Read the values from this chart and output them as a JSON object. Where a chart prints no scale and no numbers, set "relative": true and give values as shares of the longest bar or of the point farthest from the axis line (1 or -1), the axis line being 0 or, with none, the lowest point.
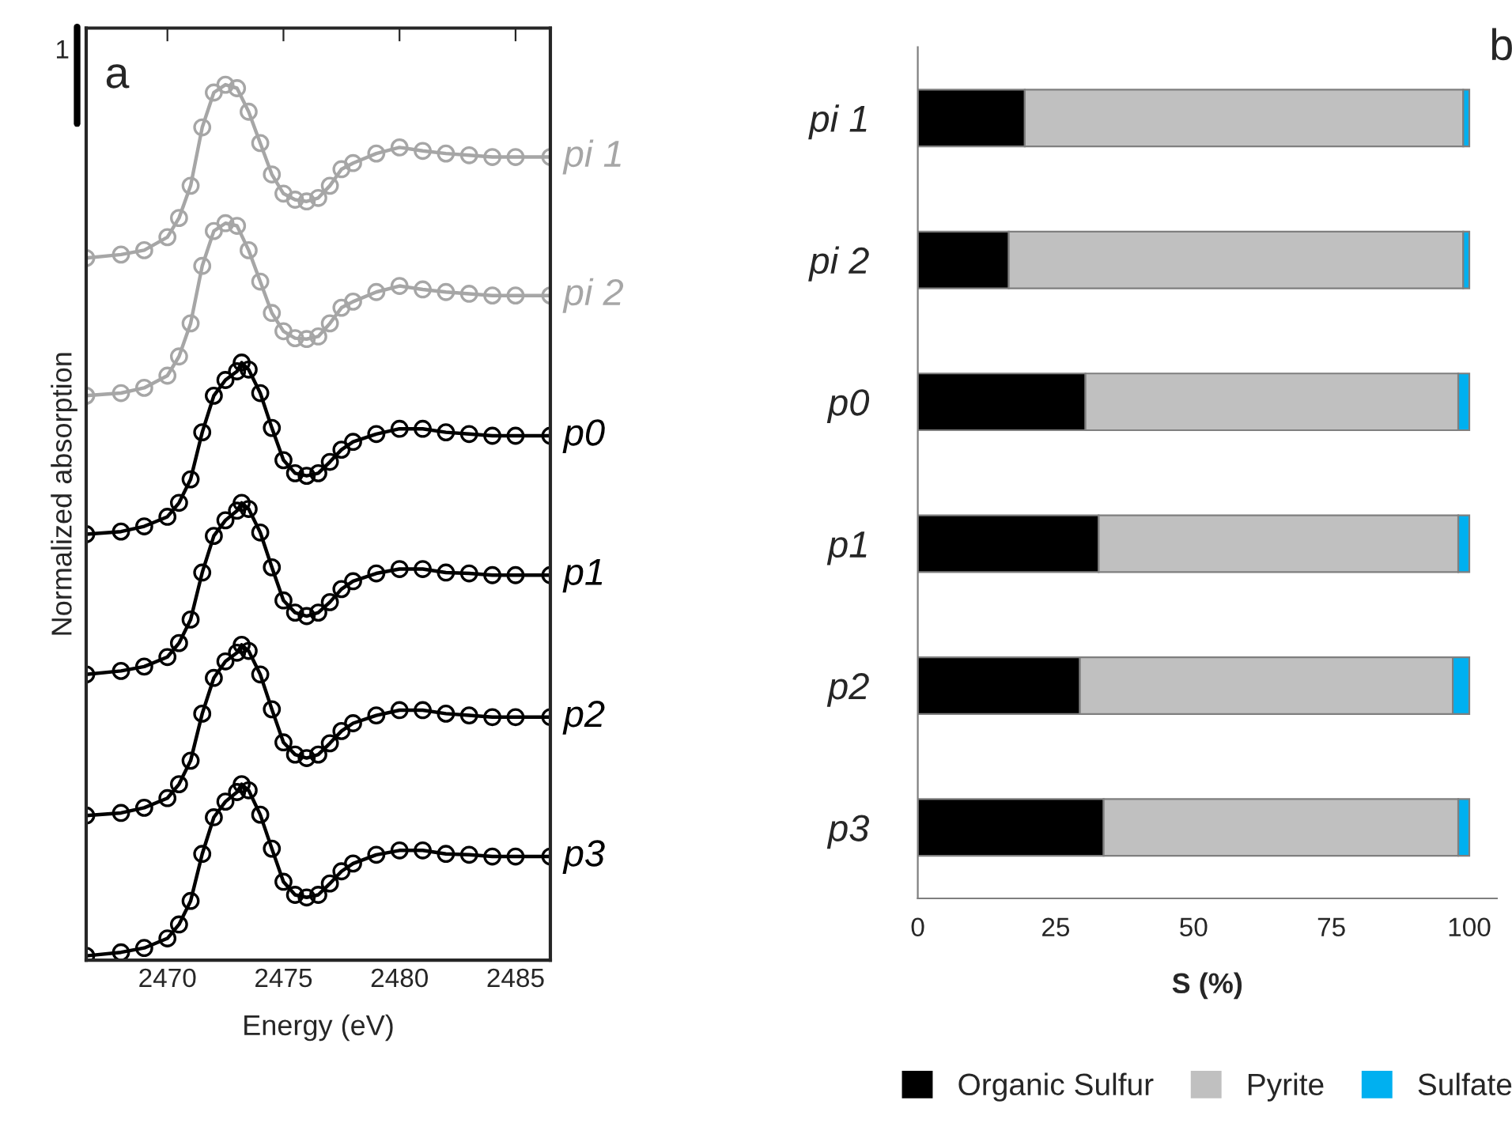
{
  "chart_data": [
    {
      "type": "line",
      "relative": true,
      "xlabel": "Energy (eV)",
      "ylabel": "Normalized absorption",
      "xlim": [
        2466.5,
        2486.5
      ],
      "xticks": [
        2470,
        2475,
        2480,
        2485
      ],
      "tick_labels": "x",
      "marker": "circle",
      "line_style": "solid",
      "annotations": [
        "a",
        "1"
      ],
      "series": [
        {
          "name": "pi 1",
          "color": "#a6a6a6",
          "x": [
            2466.5,
            2468,
            2469,
            2470,
            2470.5,
            2471,
            2471.5,
            2472,
            2472.5,
            2473,
            2473.5,
            2474,
            2474.5,
            2475,
            2475.5,
            2476,
            2476.5,
            2477,
            2477.5,
            2478,
            2479,
            2480,
            2481,
            2482,
            2483,
            2484,
            2485,
            2486.5
          ],
          "values": [
            0.801,
            0.805,
            0.81,
            0.825,
            0.847,
            0.884,
            0.951,
            0.991,
            1.0,
            0.996,
            0.969,
            0.933,
            0.897,
            0.875,
            0.868,
            0.866,
            0.87,
            0.884,
            0.903,
            0.91,
            0.921,
            0.928,
            0.924,
            0.921,
            0.919,
            0.917,
            0.917,
            0.917
          ]
        },
        {
          "name": "pi 2",
          "color": "#a6a6a6",
          "x": [
            2466.5,
            2468,
            2469,
            2470,
            2470.5,
            2471,
            2471.5,
            2472,
            2472.5,
            2473,
            2473.5,
            2474,
            2474.5,
            2475,
            2475.5,
            2476,
            2476.5,
            2477,
            2477.5,
            2478,
            2479,
            2480,
            2481,
            2482,
            2483,
            2484,
            2485,
            2486.5
          ],
          "values": [
            0.643,
            0.646,
            0.652,
            0.666,
            0.688,
            0.726,
            0.792,
            0.832,
            0.841,
            0.838,
            0.81,
            0.774,
            0.738,
            0.717,
            0.709,
            0.708,
            0.711,
            0.726,
            0.744,
            0.751,
            0.762,
            0.769,
            0.765,
            0.762,
            0.76,
            0.758,
            0.758,
            0.758
          ]
        },
        {
          "name": "p0",
          "color": "#000000",
          "x": [
            2466.5,
            2468,
            2469,
            2470,
            2470.5,
            2471,
            2471.5,
            2472,
            2472.5,
            2473,
            2473.2,
            2473.5,
            2474,
            2474.5,
            2475,
            2475.5,
            2476,
            2476.5,
            2477,
            2477.5,
            2478,
            2479,
            2480,
            2481,
            2482,
            2483,
            2484,
            2485,
            2486.5
          ],
          "values": [
            0.484,
            0.487,
            0.493,
            0.504,
            0.52,
            0.547,
            0.601,
            0.643,
            0.661,
            0.671,
            0.681,
            0.673,
            0.646,
            0.606,
            0.569,
            0.554,
            0.551,
            0.554,
            0.567,
            0.581,
            0.59,
            0.599,
            0.605,
            0.605,
            0.601,
            0.599,
            0.597,
            0.597,
            0.597
          ]
        },
        {
          "name": "p1",
          "color": "#000000",
          "x": [
            2466.5,
            2468,
            2469,
            2470,
            2470.5,
            2471,
            2471.5,
            2472,
            2472.5,
            2473,
            2473.2,
            2473.5,
            2474,
            2474.5,
            2475,
            2475.5,
            2476,
            2476.5,
            2477,
            2477.5,
            2478,
            2479,
            2480,
            2481,
            2482,
            2483,
            2484,
            2485,
            2486.5
          ],
          "values": [
            0.323,
            0.327,
            0.332,
            0.343,
            0.359,
            0.386,
            0.44,
            0.482,
            0.5,
            0.511,
            0.52,
            0.513,
            0.486,
            0.446,
            0.408,
            0.394,
            0.39,
            0.394,
            0.406,
            0.421,
            0.43,
            0.439,
            0.444,
            0.444,
            0.44,
            0.439,
            0.437,
            0.437,
            0.437
          ]
        },
        {
          "name": "p2",
          "color": "#000000",
          "x": [
            2466.5,
            2468,
            2469,
            2470,
            2470.5,
            2471,
            2471.5,
            2472,
            2472.5,
            2473,
            2473.2,
            2473.5,
            2474,
            2474.5,
            2475,
            2475.5,
            2476,
            2476.5,
            2477,
            2477.5,
            2478,
            2479,
            2480,
            2481,
            2482,
            2483,
            2484,
            2485,
            2486.5
          ],
          "values": [
            0.161,
            0.164,
            0.17,
            0.181,
            0.197,
            0.224,
            0.278,
            0.319,
            0.338,
            0.348,
            0.357,
            0.35,
            0.323,
            0.283,
            0.245,
            0.231,
            0.227,
            0.231,
            0.244,
            0.258,
            0.267,
            0.276,
            0.282,
            0.282,
            0.278,
            0.276,
            0.274,
            0.274,
            0.274
          ]
        },
        {
          "name": "p3",
          "color": "#000000",
          "x": [
            2466.5,
            2468,
            2469,
            2470,
            2470.5,
            2471,
            2471.5,
            2472,
            2472.5,
            2473,
            2473.2,
            2473.5,
            2474,
            2474.5,
            2475,
            2475.5,
            2476,
            2476.5,
            2477,
            2477.5,
            2478,
            2479,
            2480,
            2481,
            2482,
            2483,
            2484,
            2485,
            2486.5
          ],
          "values": [
            0.0,
            0.004,
            0.009,
            0.02,
            0.036,
            0.063,
            0.117,
            0.159,
            0.177,
            0.188,
            0.197,
            0.19,
            0.162,
            0.123,
            0.085,
            0.07,
            0.067,
            0.07,
            0.083,
            0.097,
            0.106,
            0.116,
            0.121,
            0.121,
            0.117,
            0.116,
            0.114,
            0.114,
            0.114
          ]
        }
      ]
    },
    {
      "type": "bar",
      "orientation": "horizontal",
      "stacked": true,
      "xlabel": "S (%)",
      "xlim": [
        0,
        105
      ],
      "xticks": [
        0,
        25,
        50,
        75,
        100
      ],
      "legend": "bottom",
      "grid": false,
      "annotations": [
        "b"
      ],
      "categories": [
        "pi 1",
        "pi 2",
        "p0",
        "p1",
        "p2",
        "p3"
      ],
      "series": [
        {
          "name": "Organic Sulfur",
          "color": "#000000",
          "values": [
            19.4,
            16.5,
            30.4,
            32.8,
            29.4,
            33.7
          ]
        },
        {
          "name": "Pyrite",
          "color": "#c0c0c0",
          "values": [
            79.5,
            82.4,
            67.6,
            65.2,
            67.6,
            64.3
          ]
        },
        {
          "name": "Sulfate",
          "color": "#00b0f0",
          "values": [
            1.1,
            1.1,
            2.0,
            2.0,
            3.0,
            2.0
          ]
        }
      ]
    }
  ]
}
